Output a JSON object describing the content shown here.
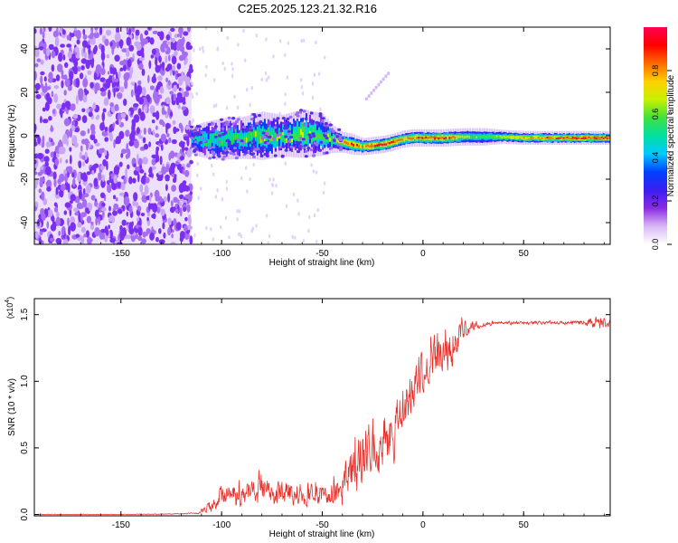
{
  "page_title": "C2E5.2025.123.21.32.R16",
  "colors": {
    "snr_line": "#e8302a",
    "axis": "#000000",
    "spectrogram_noise": "#7b2ff0",
    "spectrogram_noise_light": "#c9a6f5"
  },
  "colorbar": {
    "label": "Normalized spectral amplitude",
    "ticks": [
      "0.0",
      "0.2",
      "0.4",
      "0.6",
      "0.8"
    ],
    "tick_values": [
      0.0,
      0.2,
      0.4,
      0.6,
      0.8
    ],
    "stops": [
      "#ffffff",
      "#d9b8f5",
      "#8a2be2",
      "#3b1ff0",
      "#0040ff",
      "#00c8ff",
      "#00e0a0",
      "#40e040",
      "#c8f000",
      "#ffd000",
      "#ff6a00",
      "#ff0000",
      "#ff0050"
    ]
  },
  "chart_data": [
    {
      "type": "heatmap",
      "title": "C2E5.2025.123.21.32.R16",
      "xlabel": "Height of straight line (km)",
      "ylabel": "Frequency (Hz)",
      "xlim": [
        -193,
        93
      ],
      "ylim": [
        -50,
        50
      ],
      "x_ticks": [
        -150,
        -100,
        -50,
        0,
        50
      ],
      "y_ticks": [
        -40,
        -20,
        0,
        20,
        40
      ],
      "x_tick_labels": [
        "-150",
        "-100",
        "-50",
        "0",
        "50"
      ],
      "y_tick_labels": [
        "-40",
        "-20",
        "0",
        "20",
        "40"
      ],
      "noise_region_x": [
        -193,
        -115
      ],
      "signal_band": {
        "x": [
          -115,
          -110,
          -100,
          -90,
          -80,
          -70,
          -60,
          -50,
          -45,
          -40,
          -35,
          -30,
          -25,
          -20,
          -15,
          -10,
          -5,
          0,
          10,
          20,
          30,
          40,
          50,
          60,
          70,
          80,
          93
        ],
        "center_hz": [
          -2,
          -2,
          -1.5,
          -1,
          0,
          0,
          1,
          0.5,
          -1.5,
          -3,
          -4,
          -5,
          -4.5,
          -4,
          -3,
          -1.5,
          -1,
          -1,
          -1,
          -0.5,
          -0.5,
          -0.5,
          -1,
          -1,
          -1,
          -1,
          -1
        ],
        "halfwidth_hz": [
          4,
          5,
          6,
          6,
          7,
          6,
          7,
          6,
          4,
          3,
          3,
          2.5,
          2.5,
          2.5,
          2.5,
          2.5,
          2.5,
          2.5,
          2.5,
          2.5,
          2.5,
          2,
          2,
          2,
          2,
          2,
          2
        ],
        "peak_amplitude": [
          0.45,
          0.55,
          0.6,
          0.6,
          0.65,
          0.6,
          0.65,
          0.6,
          0.7,
          0.85,
          0.9,
          0.85,
          0.95,
          1.0,
          0.95,
          0.85,
          0.9,
          0.9,
          0.95,
          0.7,
          0.6,
          0.7,
          0.8,
          0.85,
          0.9,
          0.95,
          0.95
        ]
      }
    },
    {
      "type": "line",
      "xlabel": "Height of straight line (km)",
      "ylabel": "SNR (10 * v/v)",
      "y_scale_label": "(x10",
      "y_scale_exponent": "4",
      "xlim": [
        -193,
        93
      ],
      "ylim": [
        -0.01,
        1.62
      ],
      "x_ticks": [
        -150,
        -100,
        -50,
        0,
        50
      ],
      "y_ticks": [
        0.0,
        0.5,
        1.0,
        1.5
      ],
      "x_tick_labels": [
        "-150",
        "-100",
        "-50",
        "0",
        "50"
      ],
      "y_tick_labels": [
        "0.0",
        "0.5",
        "1.0",
        "1.5"
      ],
      "series": [
        {
          "name": "SNR",
          "x": [
            -193,
            -150,
            -120,
            -112,
            -108,
            -105,
            -100,
            -90,
            -80,
            -70,
            -60,
            -50,
            -45,
            -40,
            -35,
            -30,
            -25,
            -20,
            -15,
            -10,
            -5,
            0,
            5,
            10,
            15,
            20,
            25,
            30,
            40,
            50,
            60,
            70,
            80,
            88,
            93
          ],
          "mean": [
            0.0,
            0.0,
            0.005,
            0.01,
            0.04,
            0.08,
            0.13,
            0.15,
            0.17,
            0.16,
            0.15,
            0.14,
            0.15,
            0.2,
            0.38,
            0.45,
            0.52,
            0.55,
            0.65,
            0.8,
            0.95,
            1.08,
            1.15,
            1.25,
            1.3,
            1.38,
            1.42,
            1.43,
            1.44,
            1.44,
            1.44,
            1.44,
            1.44,
            1.44,
            1.43
          ],
          "noise": [
            0.004,
            0.004,
            0.004,
            0.01,
            0.04,
            0.07,
            0.11,
            0.12,
            0.13,
            0.12,
            0.12,
            0.12,
            0.14,
            0.2,
            0.35,
            0.32,
            0.3,
            0.3,
            0.28,
            0.25,
            0.25,
            0.22,
            0.25,
            0.28,
            0.25,
            0.12,
            0.06,
            0.03,
            0.02,
            0.02,
            0.02,
            0.02,
            0.03,
            0.07,
            0.05
          ]
        }
      ]
    }
  ]
}
